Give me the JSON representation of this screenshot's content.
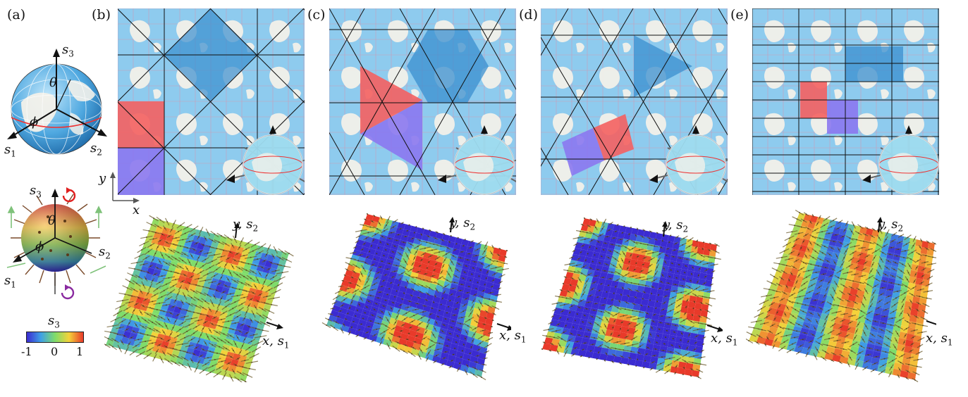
{
  "panel_labels": [
    "(a)",
    "(b)",
    "(c)",
    "(d)",
    "(e)"
  ],
  "axes": {
    "s1": "s1",
    "s2": "s2",
    "s3": "s3",
    "theta": "θ",
    "phi": "ϕ",
    "x": "x",
    "y": "y",
    "x_s1": "x, s1",
    "y_s2": "y, s2"
  },
  "colorbar": {
    "label": "s3",
    "ticks": [
      "-1",
      "0",
      "1"
    ],
    "colors": [
      "#3b2bd1",
      "#3fa0e6",
      "#7fdc6a",
      "#f4d23a",
      "#e83a2a"
    ]
  },
  "colors": {
    "ocean": "#8ecbee",
    "ocean_dark": "#3a8fcf",
    "land": "#f3f1ea",
    "red_tile": "#f46060",
    "blue_tile": "#8b78f0",
    "grid_pink": "#e68aa0",
    "tiling_line": "#111111"
  },
  "map_panels": [
    {
      "name": "b",
      "tiling": "square"
    },
    {
      "name": "c",
      "tiling": "hexagon-triangle"
    },
    {
      "name": "d",
      "tiling": "kagome"
    },
    {
      "name": "e",
      "tiling": "rectangular"
    }
  ],
  "icons": [
    "sphere-globe-icon",
    "spiky-sphere-icon",
    "rotation-arrow-icon",
    "vector-field-icon"
  ]
}
